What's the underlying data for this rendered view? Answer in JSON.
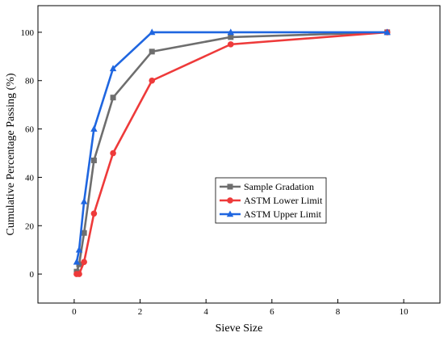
{
  "chart_data": {
    "type": "line",
    "title": "",
    "xlabel": "Sieve Size",
    "ylabel": "Cumulative Percentage Passing (%)",
    "xlim": [
      -1.1,
      11.1
    ],
    "ylim": [
      -12,
      111
    ],
    "xticks": [
      0,
      2,
      4,
      6,
      8,
      10
    ],
    "yticks": [
      0,
      20,
      40,
      60,
      80,
      100
    ],
    "grid": false,
    "legend_position": "center-right",
    "series": [
      {
        "name": "Sample Gradation",
        "color": "#6e6e6e",
        "marker": "square",
        "x": [
          0.075,
          0.15,
          0.3,
          0.6,
          1.18,
          2.36,
          4.75,
          9.5
        ],
        "y": [
          1,
          4,
          17,
          47,
          73,
          92,
          98,
          100
        ]
      },
      {
        "name": "ASTM Lower Limit",
        "color": "#ee3a3a",
        "marker": "circle",
        "x": [
          0.075,
          0.15,
          0.3,
          0.6,
          1.18,
          2.36,
          4.75,
          9.5
        ],
        "y": [
          0,
          0,
          5,
          25,
          50,
          80,
          95,
          100
        ]
      },
      {
        "name": "ASTM Upper Limit",
        "color": "#1f66e0",
        "marker": "triangle",
        "x": [
          0.075,
          0.15,
          0.3,
          0.6,
          1.18,
          2.36,
          4.75,
          9.5
        ],
        "y": [
          5,
          10,
          30,
          60,
          85,
          100,
          100,
          100
        ]
      }
    ]
  }
}
